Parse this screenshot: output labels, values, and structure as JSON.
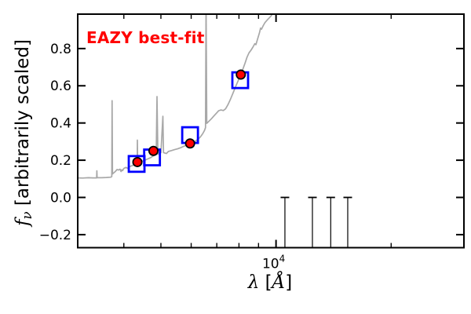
{
  "annotation": {
    "label": "EAZY best-fit",
    "color": "#ff0000"
  },
  "axes": {
    "xlabel": {
      "symbol": "λ",
      "unit_prefix": " [",
      "unit_symbol": "Å",
      "unit_suffix": "]"
    },
    "ylabel": {
      "symbol": "f",
      "subscript": "ν",
      "rest": " [arbitrarily scaled]"
    },
    "frame_color": "#000000",
    "tick_label_color": "#000000"
  },
  "chart_data": {
    "type": "line",
    "title": "",
    "annotation": "EAZY best-fit",
    "xlabel": "λ [Å]",
    "ylabel": "fν [arbitrarily scaled]",
    "x_scale": "log",
    "xlim": [
      3030,
      31000
    ],
    "ylim": [
      -0.27,
      0.985
    ],
    "grid": false,
    "legend": null,
    "x_major_ticks": [
      {
        "value": 10000,
        "base": "10",
        "exponent": "4"
      }
    ],
    "x_minor_ticks": [
      4000,
      5000,
      6000,
      7000,
      8000,
      9000,
      20000
    ],
    "y_major_ticks": [
      {
        "value": 0.8,
        "label": "0.8"
      },
      {
        "value": 0.6,
        "label": "0.6"
      },
      {
        "value": 0.4,
        "label": "0.4"
      },
      {
        "value": 0.2,
        "label": "0.2"
      },
      {
        "value": 0.0,
        "label": "0.0"
      },
      {
        "value": -0.2,
        "label": "−0.2"
      }
    ],
    "series": [
      {
        "name": "best-fit-template-spectrum",
        "type": "line",
        "color": "#a8a8a8",
        "line_width": 1.7,
        "points": [
          [
            3030,
            0.105
          ],
          [
            3120,
            0.104
          ],
          [
            3230,
            0.106
          ],
          [
            3320,
            0.105
          ],
          [
            3396,
            0.105
          ],
          [
            3400,
            0.143
          ],
          [
            3406,
            0.106
          ],
          [
            3500,
            0.106
          ],
          [
            3600,
            0.107
          ],
          [
            3696,
            0.109
          ],
          [
            3720,
            0.112
          ],
          [
            3727,
            0.52
          ],
          [
            3735,
            0.126
          ],
          [
            3760,
            0.131
          ],
          [
            3800,
            0.139
          ],
          [
            3840,
            0.15
          ],
          [
            3870,
            0.147
          ],
          [
            3910,
            0.152
          ],
          [
            3933,
            0.139
          ],
          [
            3952,
            0.149
          ],
          [
            3970,
            0.144
          ],
          [
            4000,
            0.156
          ],
          [
            4050,
            0.161
          ],
          [
            4101,
            0.156
          ],
          [
            4150,
            0.166
          ],
          [
            4220,
            0.172
          ],
          [
            4290,
            0.176
          ],
          [
            4335,
            0.179
          ],
          [
            4340,
            0.308
          ],
          [
            4348,
            0.182
          ],
          [
            4420,
            0.19
          ],
          [
            4500,
            0.197
          ],
          [
            4600,
            0.205
          ],
          [
            4700,
            0.214
          ],
          [
            4780,
            0.224
          ],
          [
            4830,
            0.228
          ],
          [
            4860,
            0.231
          ],
          [
            4885,
            0.542
          ],
          [
            4910,
            0.233
          ],
          [
            4950,
            0.238
          ],
          [
            5000,
            0.24
          ],
          [
            5060,
            0.436
          ],
          [
            5080,
            0.241
          ],
          [
            5170,
            0.236
          ],
          [
            5230,
            0.247
          ],
          [
            5330,
            0.252
          ],
          [
            5430,
            0.257
          ],
          [
            5530,
            0.261
          ],
          [
            5630,
            0.267
          ],
          [
            5730,
            0.274
          ],
          [
            5830,
            0.281
          ],
          [
            5930,
            0.288
          ],
          [
            6030,
            0.294
          ],
          [
            6130,
            0.3
          ],
          [
            6230,
            0.31
          ],
          [
            6330,
            0.323
          ],
          [
            6430,
            0.342
          ],
          [
            6500,
            0.36
          ],
          [
            6540,
            0.375
          ],
          [
            6563,
            1.06
          ],
          [
            6590,
            0.398
          ],
          [
            6680,
            0.41
          ],
          [
            6780,
            0.423
          ],
          [
            6880,
            0.438
          ],
          [
            6980,
            0.452
          ],
          [
            7080,
            0.466
          ],
          [
            7180,
            0.47
          ],
          [
            7280,
            0.467
          ],
          [
            7380,
            0.476
          ],
          [
            7480,
            0.497
          ],
          [
            7580,
            0.522
          ],
          [
            7680,
            0.55
          ],
          [
            7780,
            0.578
          ],
          [
            7880,
            0.606
          ],
          [
            7980,
            0.632
          ],
          [
            8090,
            0.66
          ],
          [
            8200,
            0.692
          ],
          [
            8300,
            0.722
          ],
          [
            8400,
            0.754
          ],
          [
            8500,
            0.777
          ],
          [
            8600,
            0.791
          ],
          [
            8700,
            0.808
          ],
          [
            8800,
            0.826
          ],
          [
            8860,
            0.821
          ],
          [
            8950,
            0.852
          ],
          [
            9050,
            0.884
          ],
          [
            9110,
            0.91
          ],
          [
            9160,
            0.904
          ],
          [
            9260,
            0.924
          ],
          [
            9360,
            0.94
          ],
          [
            9460,
            0.951
          ],
          [
            9560,
            0.961
          ],
          [
            9700,
            0.975
          ],
          [
            9850,
            0.996
          ],
          [
            10000,
            1.03
          ]
        ]
      },
      {
        "name": "template-photometry",
        "type": "scatter",
        "marker": "open-square",
        "color": "#0000ff",
        "marker_size": 20,
        "stroke_width": 2.8,
        "points": [
          [
            4320,
            0.18
          ],
          [
            4740,
            0.215
          ],
          [
            5960,
            0.335
          ],
          [
            8060,
            0.63
          ]
        ]
      },
      {
        "name": "observed-photometry",
        "type": "scatter",
        "marker": "filled-circle",
        "color": "#ff0000",
        "edge_color": "#000000",
        "marker_radius": 5.6,
        "points": [
          [
            4340,
            0.19
          ],
          [
            4780,
            0.25
          ],
          [
            5960,
            0.29
          ],
          [
            8090,
            0.66
          ]
        ]
      },
      {
        "name": "flux-upper-limit-bars",
        "type": "errorbar",
        "color": "#000000",
        "cap_top_value": 0.0,
        "cap_half_width": 5.5,
        "x": [
          10550,
          12450,
          13900,
          15400
        ]
      }
    ]
  }
}
